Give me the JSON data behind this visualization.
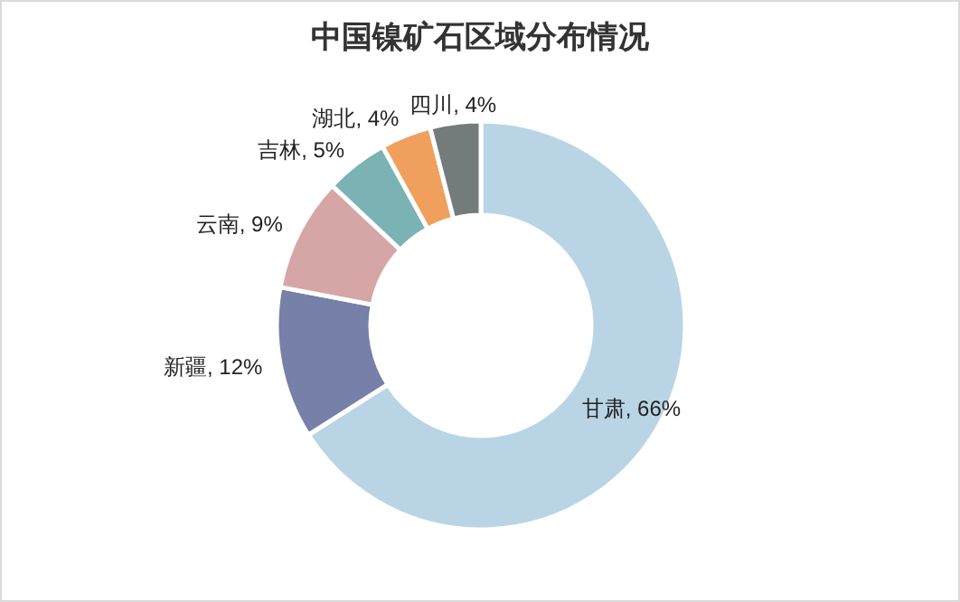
{
  "chart_data": {
    "type": "donut",
    "title": "中国镍矿石区域分布情况",
    "categories": [
      "甘肃",
      "新疆",
      "云南",
      "吉林",
      "湖北",
      "四川"
    ],
    "values": [
      66,
      12,
      9,
      5,
      4,
      4
    ],
    "value_labels": [
      ", 66%",
      ", 12%",
      ", 9%",
      ", 5%",
      ", 4%",
      ", 4%"
    ],
    "colors": [
      "#b9d5e5",
      "#7680a8",
      "#d5a6a5",
      "#7bb3b4",
      "#f0a05c",
      "#737c7a"
    ]
  }
}
